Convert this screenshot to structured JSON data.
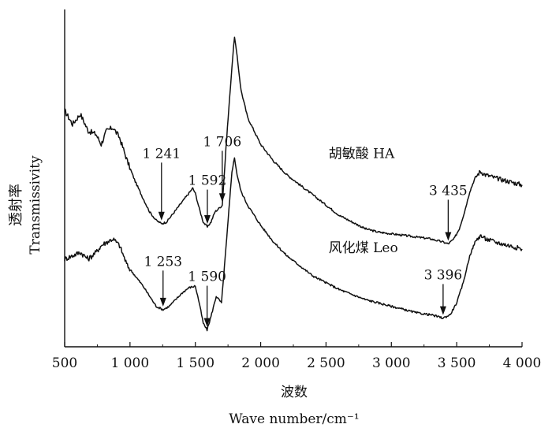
{
  "chart_data": {
    "type": "line",
    "xlabel_cn": "波数",
    "xlabel": "Wave number/cm⁻¹",
    "ylabel_cn": "透射率",
    "ylabel": "Transmissivity",
    "xlim": [
      500,
      4000
    ],
    "ylim": [
      0,
      1
    ],
    "grid": false,
    "x_ticks": [
      {
        "v": 500,
        "label": "500"
      },
      {
        "v": 1000,
        "label": "1 000"
      },
      {
        "v": 1500,
        "label": "1 500"
      },
      {
        "v": 2000,
        "label": "2 000"
      },
      {
        "v": 2500,
        "label": "2 500"
      },
      {
        "v": 3000,
        "label": "3 000"
      },
      {
        "v": 3500,
        "label": "3 500"
      },
      {
        "v": 4000,
        "label": "4 000"
      }
    ],
    "series": [
      {
        "name": "胡敏酸  HA",
        "x": [
          500,
          560,
          620,
          680,
          740,
          780,
          820,
          870,
          920,
          980,
          1040,
          1100,
          1150,
          1200,
          1241,
          1280,
          1320,
          1360,
          1400,
          1440,
          1480,
          1500,
          1530,
          1560,
          1592,
          1620,
          1650,
          1680,
          1706,
          1740,
          1780,
          1800,
          1820,
          1850,
          1900,
          2000,
          2100,
          2200,
          2300,
          2400,
          2500,
          2600,
          2700,
          2800,
          2900,
          3000,
          3100,
          3200,
          3300,
          3350,
          3400,
          3435,
          3480,
          3520,
          3560,
          3600,
          3640,
          3680,
          3720,
          3800,
          3900,
          4000
        ],
        "y": [
          0.7,
          0.66,
          0.69,
          0.64,
          0.63,
          0.6,
          0.64,
          0.65,
          0.62,
          0.55,
          0.49,
          0.44,
          0.4,
          0.375,
          0.365,
          0.37,
          0.39,
          0.41,
          0.43,
          0.45,
          0.47,
          0.455,
          0.41,
          0.37,
          0.355,
          0.37,
          0.4,
          0.41,
          0.42,
          0.62,
          0.83,
          0.92,
          0.86,
          0.76,
          0.68,
          0.6,
          0.55,
          0.51,
          0.48,
          0.45,
          0.42,
          0.39,
          0.37,
          0.35,
          0.34,
          0.335,
          0.33,
          0.325,
          0.32,
          0.315,
          0.31,
          0.305,
          0.32,
          0.35,
          0.4,
          0.46,
          0.5,
          0.52,
          0.51,
          0.5,
          0.49,
          0.48
        ]
      },
      {
        "name": "风化煤  Leo",
        "x": [
          500,
          560,
          620,
          680,
          740,
          780,
          820,
          870,
          920,
          980,
          1040,
          1100,
          1150,
          1200,
          1253,
          1300,
          1350,
          1400,
          1450,
          1500,
          1530,
          1560,
          1590,
          1620,
          1660,
          1700,
          1740,
          1780,
          1800,
          1820,
          1850,
          1900,
          2000,
          2100,
          2200,
          2300,
          2400,
          2500,
          2600,
          2700,
          2800,
          2900,
          3000,
          3100,
          3200,
          3300,
          3350,
          3396,
          3450,
          3500,
          3550,
          3600,
          3640,
          3680,
          3720,
          3800,
          3900,
          4000
        ],
        "y": [
          0.26,
          0.27,
          0.28,
          0.26,
          0.28,
          0.3,
          0.31,
          0.32,
          0.3,
          0.24,
          0.21,
          0.18,
          0.15,
          0.12,
          0.11,
          0.12,
          0.14,
          0.16,
          0.175,
          0.18,
          0.13,
          0.07,
          0.05,
          0.09,
          0.15,
          0.13,
          0.32,
          0.52,
          0.56,
          0.51,
          0.46,
          0.42,
          0.36,
          0.31,
          0.27,
          0.24,
          0.21,
          0.19,
          0.17,
          0.155,
          0.14,
          0.13,
          0.12,
          0.11,
          0.1,
          0.095,
          0.09,
          0.085,
          0.095,
          0.13,
          0.19,
          0.27,
          0.31,
          0.33,
          0.32,
          0.31,
          0.3,
          0.29
        ]
      }
    ],
    "series_labels": [
      {
        "text": "胡敏酸  HA",
        "x": 2520,
        "y": 0.56
      },
      {
        "text": "风化煤  Leo",
        "x": 2520,
        "y": 0.28
      }
    ],
    "annotations": [
      {
        "label": "1 241",
        "x": 1241,
        "y": 0.365,
        "label_y": 0.56
      },
      {
        "label": "1 592",
        "x": 1592,
        "y": 0.355,
        "label_y": 0.48
      },
      {
        "label": "1 706",
        "x": 1706,
        "y": 0.42,
        "label_y": 0.595
      },
      {
        "label": "3 435",
        "x": 3435,
        "y": 0.305,
        "label_y": 0.45
      },
      {
        "label": "1 253",
        "x": 1253,
        "y": 0.11,
        "label_y": 0.24
      },
      {
        "label": "1 590",
        "x": 1590,
        "y": 0.05,
        "label_y": 0.195
      },
      {
        "label": "3 396",
        "x": 3396,
        "y": 0.085,
        "label_y": 0.2
      }
    ]
  }
}
